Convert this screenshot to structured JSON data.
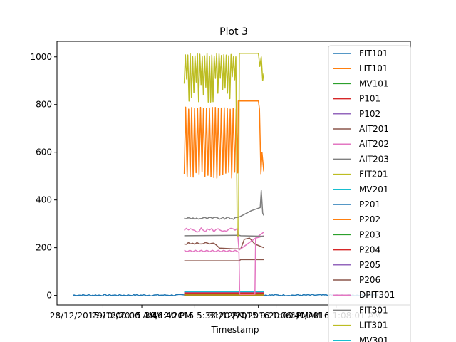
{
  "chart_data": {
    "type": "line",
    "title": "Plot 3",
    "xlabel": "Timestamp",
    "ylabel": "",
    "ylim": [
      -40,
      1065
    ],
    "yticks": [
      0,
      200,
      400,
      600,
      800,
      1000
    ],
    "xticks": [
      {
        "label": "28/12/2015 10:00:00 AM",
        "pos": 0.13
      },
      {
        "label": "29/12/2015 1:46:40 PM",
        "pos": 0.24
      },
      {
        "label": "30/12/2015 5:33:20 PM",
        "pos": 0.39
      },
      {
        "label": "31/12/2015 9:20:00 PM",
        "pos": 0.57
      },
      {
        "label": "2/1/2016 1:06:40 AM",
        "pos": 0.62
      },
      {
        "label": "1/1/2016 1:08:01 AM",
        "pos": 0.79
      }
    ],
    "legend_position": "upper right",
    "series": [
      {
        "name": "FIT101",
        "color": "#1f77b4"
      },
      {
        "name": "LIT101",
        "color": "#ff7f0e"
      },
      {
        "name": " MV101",
        "color": "#2ca02c"
      },
      {
        "name": "P101",
        "color": "#d62728"
      },
      {
        "name": "P102",
        "color": "#9467bd"
      },
      {
        "name": " AIT201",
        "color": "#8c564b"
      },
      {
        "name": "AIT202",
        "color": "#e377c2"
      },
      {
        "name": "AIT203",
        "color": "#7f7f7f"
      },
      {
        "name": "FIT201",
        "color": "#bcbd22"
      },
      {
        "name": " MV201",
        "color": "#17becf"
      },
      {
        "name": " P201",
        "color": "#1f77b4"
      },
      {
        "name": " P202",
        "color": "#ff7f0e"
      },
      {
        "name": "P203",
        "color": "#2ca02c"
      },
      {
        "name": " P204",
        "color": "#d62728"
      },
      {
        "name": "P205",
        "color": "#9467bd"
      },
      {
        "name": "P206",
        "color": "#8c564b"
      },
      {
        "name": "DPIT301",
        "color": "#e377c2"
      },
      {
        "name": "FIT301",
        "color": "#7f7f7f"
      },
      {
        "name": "LIT301",
        "color": "#bcbd22"
      },
      {
        "name": "MV301",
        "color": "#17becf"
      }
    ]
  }
}
